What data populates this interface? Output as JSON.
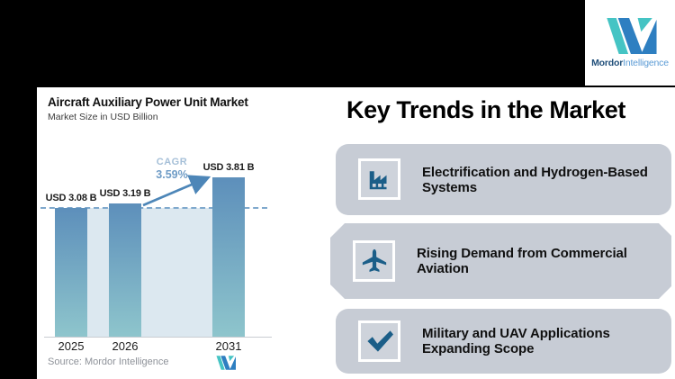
{
  "header": {
    "logo": {
      "brand_bold": "Mordor",
      "brand_light": "Intelligence"
    }
  },
  "chart_panel": {
    "title": "Aircraft Auxiliary Power Unit Market",
    "subtitle": "Market Size in USD Billion",
    "cagr_label": "CAGR",
    "cagr_value": "3.59%",
    "source": "Source: Mordor Intelligence"
  },
  "chart_data": {
    "type": "bar",
    "title": "Aircraft Auxiliary Power Unit Market",
    "subtitle": "Market Size in USD Billion",
    "ylabel": "Market Size (USD Billion)",
    "categories": [
      "2025",
      "2026",
      "2031"
    ],
    "values": [
      3.08,
      3.19,
      3.81
    ],
    "bar_labels": [
      "USD 3.08 B",
      "USD 3.19 B",
      "USD 3.81 B"
    ],
    "cagr_percent": 3.59,
    "ylim": [
      0,
      4.2
    ],
    "grid": false,
    "legend": "none",
    "annotations": [
      "CAGR 3.59%",
      "dashed reference line at 2025 value"
    ]
  },
  "trends": {
    "title": "Key Trends in the Market",
    "items": [
      {
        "icon": "factory-icon",
        "label": "Electrification and Hydrogen-Based Systems"
      },
      {
        "icon": "airplane-icon",
        "label": "Rising Demand from Commercial Aviation"
      },
      {
        "icon": "checkmark-icon",
        "label": "Military and UAV Applications Expanding Scope"
      }
    ]
  },
  "colors": {
    "bar-top": "#5d8fbb",
    "bar-bottom": "#8ec5cc",
    "plot-shade": "#dce8f0",
    "dash-blue": "#7fa9cd",
    "cagr-light": "#a6c0d8",
    "cagr-blue": "#6f9cc6",
    "arrow-blue": "#4d86b8",
    "box-gray": "#c7ccd5",
    "icon-blue": "#1b5e88",
    "logo-teal": "#45c4c4",
    "logo-blue": "#2e7fc1"
  }
}
